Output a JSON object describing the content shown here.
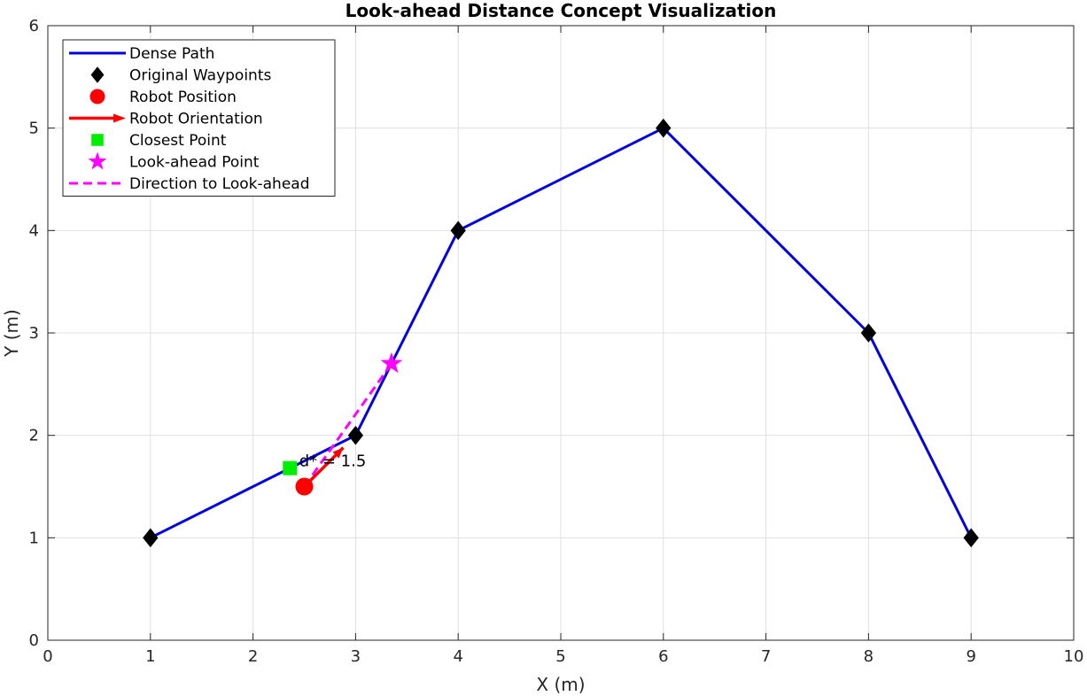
{
  "chart_data": {
    "type": "line",
    "title": "Look-ahead Distance Concept Visualization",
    "xlabel": "X (m)",
    "ylabel": "Y (m)",
    "xlim": [
      0,
      10
    ],
    "ylim": [
      0,
      6
    ],
    "xticks": [
      0,
      1,
      2,
      3,
      4,
      5,
      6,
      7,
      8,
      9,
      10
    ],
    "yticks": [
      0,
      1,
      2,
      3,
      4,
      5,
      6
    ],
    "grid": true,
    "legend_position": "top-left",
    "series": [
      {
        "name": "Dense Path",
        "kind": "line",
        "color": "#0000e0",
        "x": [
          1,
          3,
          4,
          6,
          8,
          9
        ],
        "y": [
          1,
          2,
          4,
          5,
          3,
          1
        ]
      },
      {
        "name": "Original Waypoints",
        "kind": "marker",
        "marker": "diamond",
        "color": "#000000",
        "x": [
          1,
          3,
          4,
          6,
          8,
          9
        ],
        "y": [
          1,
          2,
          4,
          5,
          3,
          1
        ]
      },
      {
        "name": "Robot Position",
        "kind": "marker",
        "marker": "circle",
        "color": "#ff0000",
        "x": [
          2.5
        ],
        "y": [
          1.5
        ]
      },
      {
        "name": "Robot Orientation",
        "kind": "arrow",
        "color": "#ff0000",
        "x": [
          2.5,
          2.88
        ],
        "y": [
          1.5,
          1.88
        ]
      },
      {
        "name": "Closest Point",
        "kind": "marker",
        "marker": "square",
        "color": "#00ee00",
        "x": [
          2.36
        ],
        "y": [
          1.68
        ]
      },
      {
        "name": "Look-ahead Point",
        "kind": "marker",
        "marker": "star",
        "color": "#ff00ff",
        "x": [
          3.35
        ],
        "y": [
          2.7
        ]
      },
      {
        "name": "Direction to Look-ahead",
        "kind": "dashed-line",
        "color": "#ff00ff",
        "x": [
          2.5,
          3.35
        ],
        "y": [
          1.5,
          2.7
        ]
      }
    ],
    "annotations": [
      {
        "text": "d* = 1.5",
        "x": 2.45,
        "y": 1.75
      }
    ]
  }
}
